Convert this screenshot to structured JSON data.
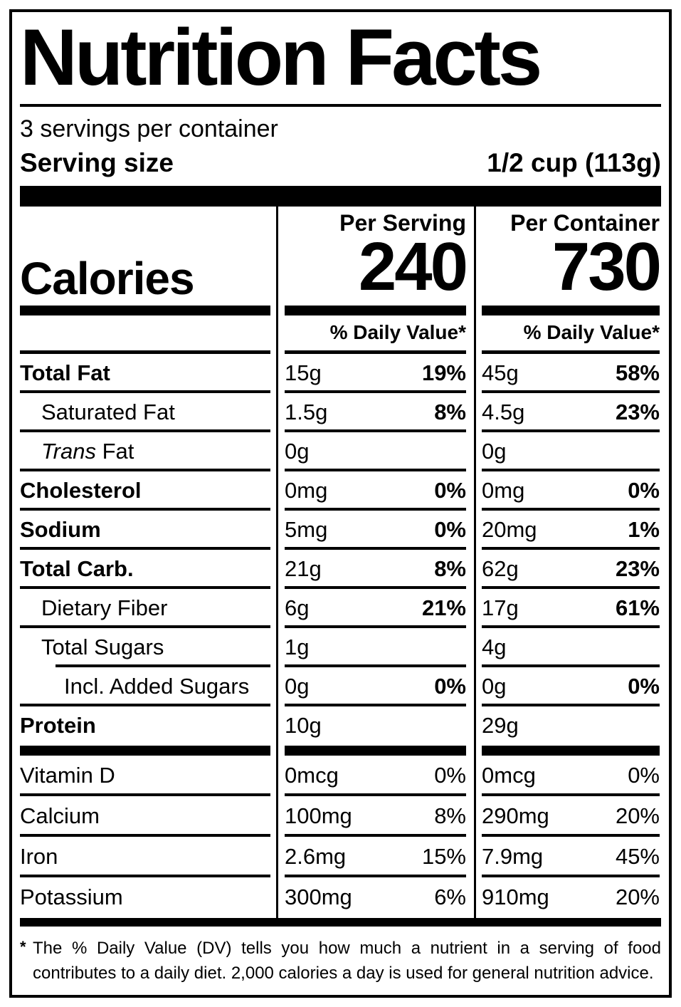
{
  "colors": {
    "ink": "#000000",
    "paper": "#ffffff"
  },
  "header": {
    "title": "Nutrition Facts",
    "servings_per_container": "3 servings per container",
    "serving_size_label": "Serving size",
    "serving_size_value": "1/2 cup (113g)"
  },
  "calories": {
    "label": "Calories",
    "per_serving_header": "Per Serving",
    "per_container_header": "Per Container",
    "per_serving_value": "240",
    "per_container_value": "730",
    "daily_value_header": "% Daily Value*"
  },
  "nutrients": [
    {
      "label": "Total Fat",
      "serving_amount": "15g",
      "serving_dv": "19%",
      "container_amount": "45g",
      "container_dv": "58%"
    },
    {
      "label": "Saturated Fat",
      "serving_amount": "1.5g",
      "serving_dv": "8%",
      "container_amount": "4.5g",
      "container_dv": "23%"
    },
    {
      "label_italic": "Trans",
      "label": " Fat",
      "serving_amount": "0g",
      "serving_dv": "",
      "container_amount": "0g",
      "container_dv": ""
    },
    {
      "label": "Cholesterol",
      "serving_amount": "0mg",
      "serving_dv": "0%",
      "container_amount": "0mg",
      "container_dv": "0%"
    },
    {
      "label": "Sodium",
      "serving_amount": "5mg",
      "serving_dv": "0%",
      "container_amount": "20mg",
      "container_dv": "1%"
    },
    {
      "label": "Total Carb.",
      "serving_amount": "21g",
      "serving_dv": "8%",
      "container_amount": "62g",
      "container_dv": "23%"
    },
    {
      "label": "Dietary Fiber",
      "serving_amount": "6g",
      "serving_dv": "21%",
      "container_amount": "17g",
      "container_dv": "61%"
    },
    {
      "label": "Total Sugars",
      "serving_amount": "1g",
      "serving_dv": "",
      "container_amount": "4g",
      "container_dv": ""
    },
    {
      "label": "Incl. Added Sugars",
      "serving_amount": "0g",
      "serving_dv": "0%",
      "container_amount": "0g",
      "container_dv": "0%"
    },
    {
      "label": "Protein",
      "serving_amount": "10g",
      "serving_dv": "",
      "container_amount": "29g",
      "container_dv": ""
    }
  ],
  "vitamins": [
    {
      "label": "Vitamin D",
      "serving_amount": "0mcg",
      "serving_dv": "0%",
      "container_amount": "0mcg",
      "container_dv": "0%"
    },
    {
      "label": "Calcium",
      "serving_amount": "100mg",
      "serving_dv": "8%",
      "container_amount": "290mg",
      "container_dv": "20%"
    },
    {
      "label": "Iron",
      "serving_amount": "2.6mg",
      "serving_dv": "15%",
      "container_amount": "7.9mg",
      "container_dv": "45%"
    },
    {
      "label": "Potassium",
      "serving_amount": "300mg",
      "serving_dv": "6%",
      "container_amount": "910mg",
      "container_dv": "20%"
    }
  ],
  "footnote": {
    "marker": "*",
    "text": "The % Daily Value (DV) tells you how much a nutrient in a serving of food contributes to a daily diet. 2,000 calories a day is used for general nutrition advice."
  }
}
